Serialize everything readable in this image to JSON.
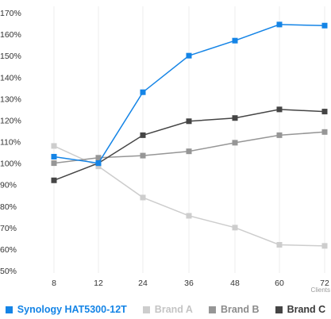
{
  "chart_data": {
    "type": "line",
    "title": "",
    "xlabel": "Clients",
    "ylabel": "",
    "x": [
      "8",
      "12",
      "24",
      "36",
      "48",
      "60",
      "72"
    ],
    "yticks": [
      "50%",
      "60%",
      "70%",
      "80%",
      "90%",
      "100%",
      "110%",
      "120%",
      "130%",
      "140%",
      "150%",
      "160%",
      "170%"
    ],
    "ylim": [
      50,
      170
    ],
    "grid": "vertical",
    "legend_position": "bottom",
    "series": [
      {
        "name": "Synology HAT5300-12T",
        "color": "#1484e6",
        "values": [
          103,
          100,
          133,
          150,
          157,
          164.5,
          164
        ]
      },
      {
        "name": "Brand A",
        "color": "#cdcdcd",
        "values": [
          108,
          98.5,
          84,
          75.5,
          70,
          62,
          61.5
        ]
      },
      {
        "name": "Brand B",
        "color": "#969696",
        "values": [
          100,
          102.5,
          103.5,
          105.5,
          109.5,
          113,
          114.5
        ]
      },
      {
        "name": "Brand C",
        "color": "#454545",
        "values": [
          92,
          100,
          113,
          119.5,
          121,
          125,
          124
        ]
      }
    ]
  }
}
